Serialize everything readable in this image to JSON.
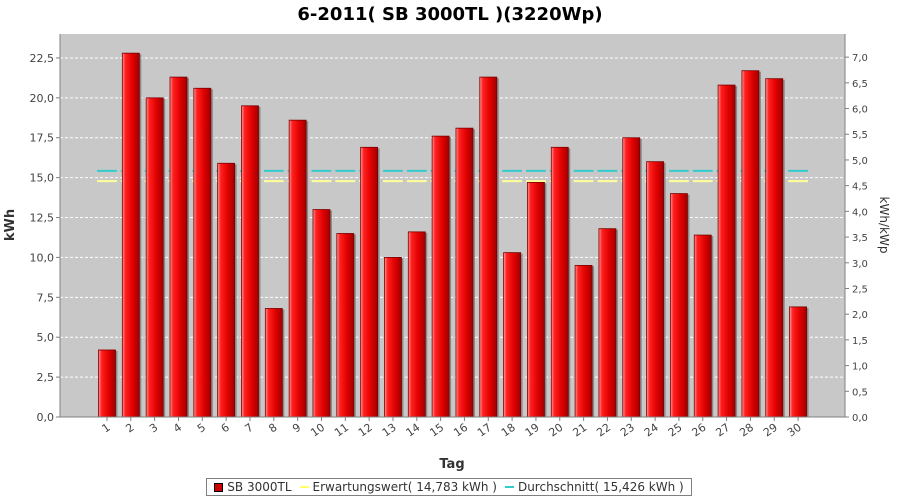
{
  "chart_data": {
    "type": "bar",
    "title": "6-2011( SB 3000TL )(3220Wp)",
    "xlabel": "Tag",
    "ylabel": "kWh",
    "y2label": "kWh/kWp",
    "ylim": [
      0,
      24
    ],
    "y2lim": [
      0,
      7.45
    ],
    "yticks": [
      "0,0",
      "2,5",
      "5,0",
      "7,5",
      "10,0",
      "12,5",
      "15,0",
      "17,5",
      "20,0",
      "22,5"
    ],
    "y2ticks": [
      "0,0",
      "0,5",
      "1,0",
      "1,5",
      "2,0",
      "2,5",
      "3,0",
      "3,5",
      "4,0",
      "4,5",
      "5,0",
      "5,5",
      "6,0",
      "6,5",
      "7,0"
    ],
    "categories": [
      "1",
      "2",
      "3",
      "4",
      "5",
      "6",
      "7",
      "8",
      "9",
      "10",
      "11",
      "12",
      "13",
      "14",
      "15",
      "16",
      "17",
      "18",
      "19",
      "20",
      "21",
      "22",
      "23",
      "24",
      "25",
      "26",
      "27",
      "28",
      "29",
      "30"
    ],
    "series": [
      {
        "name": "SB 3000TL",
        "color": "#dd0000",
        "values": [
          4.2,
          22.8,
          20.0,
          21.3,
          20.6,
          15.9,
          19.5,
          6.8,
          18.6,
          13.0,
          11.5,
          16.9,
          10.0,
          11.6,
          17.6,
          18.1,
          21.3,
          10.3,
          14.7,
          16.9,
          9.5,
          11.8,
          17.5,
          16.0,
          14.0,
          11.4,
          20.8,
          21.7,
          21.2,
          6.9
        ]
      }
    ],
    "reference_lines": [
      {
        "name": "Erwartungswert",
        "value": 14.783,
        "color": "#ffff99"
      },
      {
        "name": "Durchschnitt",
        "value": 15.426,
        "color": "#33cccc"
      }
    ],
    "legend": {
      "position": "bottom",
      "items": [
        "SB 3000TL",
        "Erwartungswert( 14,783 kWh )",
        "Durchschnitt( 15,426 kWh )"
      ]
    },
    "grid": true,
    "colors": {
      "plot_bg": "#c8c8c8",
      "grid": "#ffffff"
    }
  }
}
